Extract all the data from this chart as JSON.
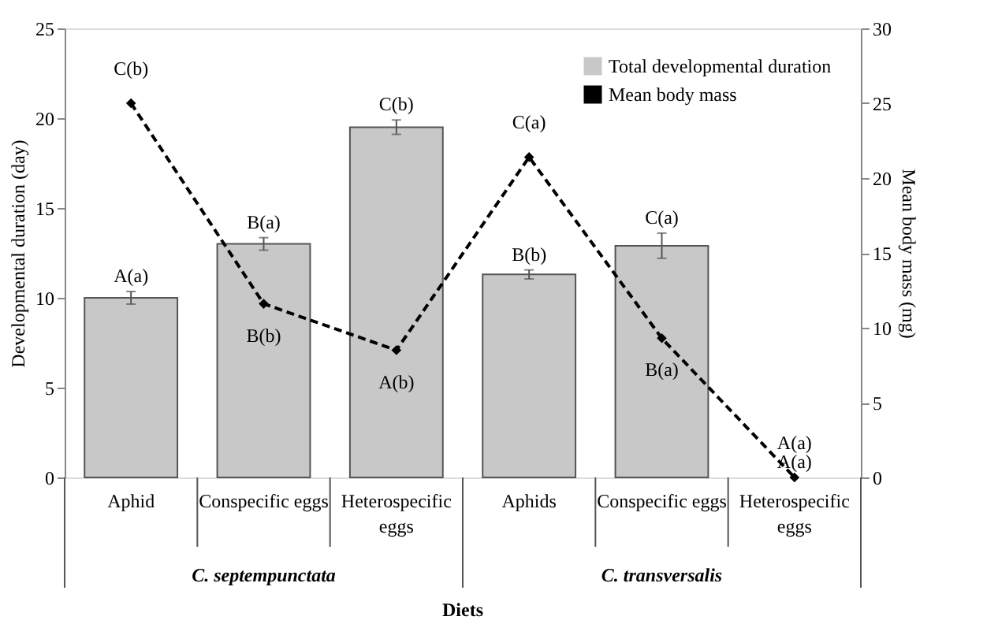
{
  "chart_data": {
    "type": "bar",
    "xlabel": "Diets",
    "ylabel": "Developmental duration (day)",
    "y2label": "Mean body mass (mg)",
    "categories": [
      "Aphid",
      "Conspecific eggs",
      "Heterospecific eggs",
      "Aphids",
      "Conspecific eggs",
      "Heterospecific eggs"
    ],
    "series": [
      {
        "name": "Total developmental duration",
        "color": "#c8c8c8",
        "values": [
          10.0,
          13.0,
          19.5,
          11.3,
          12.9,
          0
        ],
        "errors": [
          0.35,
          0.35,
          0.4,
          0.25,
          0.7,
          null
        ],
        "value_labels": [
          "A(a)",
          "B(a)",
          "C(b)",
          "B(b)",
          "C(a)",
          "A(a)"
        ]
      },
      {
        "name": "Mean body mass",
        "type": "line",
        "axis": "y2",
        "color": "#000000",
        "values": [
          25,
          11.6,
          8.5,
          21.4,
          9.3,
          0
        ],
        "value_labels": [
          "C(b)",
          "B(b)",
          "A(b)",
          "C(a)",
          "B(a)",
          "A(a)"
        ],
        "marker": "diamond",
        "line_style": "dashed"
      }
    ],
    "ylim": [
      0,
      25
    ],
    "yticks": [
      0,
      5,
      10,
      15,
      20,
      25
    ],
    "y2lim": [
      0,
      30
    ],
    "y2ticks": [
      0,
      5,
      10,
      15,
      20,
      25,
      30
    ],
    "annotations": [
      "C. septempunctata",
      "C. transversalis"
    ],
    "legend": "top right",
    "grid": false
  }
}
